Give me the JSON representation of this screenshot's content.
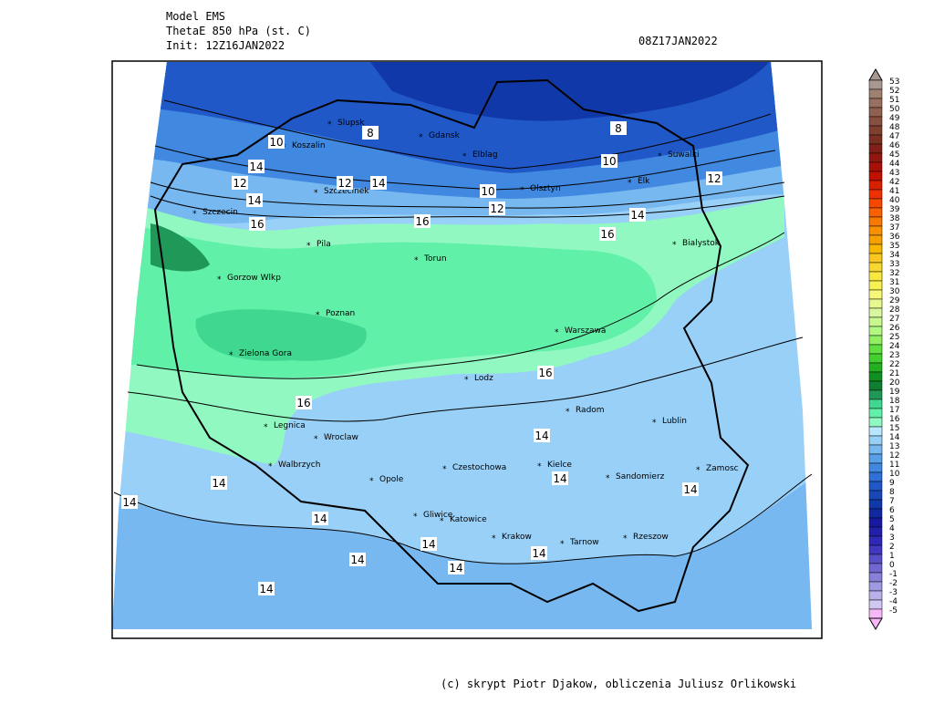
{
  "header": {
    "model": "Model EMS",
    "field": "ThetaE 850 hPa (st. C)",
    "init": "Init: 12Z16JAN2022",
    "valid": "08Z17JAN2022"
  },
  "footer": "(c) skrypt Piotr Djakow, obliczenia Juliusz Orlikowski",
  "cities": [
    "Slupsk",
    "Koszalin",
    "Gdansk",
    "Elblag",
    "Suwalki",
    "Szczecinek",
    "Olsztyn",
    "Elk",
    "Szczecin",
    "Pila",
    "Torun",
    "Bialystok",
    "Gorzow Wlkp",
    "Poznan",
    "Warszawa",
    "Zielona Gora",
    "Lodz",
    "Radom",
    "Lublin",
    "Legnica",
    "Wroclaw",
    "Walbrzych",
    "Opole",
    "Czestochowa",
    "Kielce",
    "Sandomierz",
    "Zamosc",
    "Gliwice",
    "Katowice",
    "Krakow",
    "Tarnow",
    "Rzeszow"
  ],
  "contour_labels": [
    8,
    8,
    10,
    10,
    10,
    12,
    12,
    12,
    12,
    14,
    14,
    14,
    14,
    16,
    16,
    16,
    16,
    16,
    14,
    14,
    14,
    14,
    14,
    14,
    14,
    14,
    14,
    14,
    14
  ],
  "colorbar": {
    "levels": [
      53,
      52,
      51,
      50,
      49,
      48,
      47,
      46,
      45,
      44,
      43,
      42,
      41,
      40,
      39,
      38,
      37,
      36,
      35,
      34,
      33,
      32,
      31,
      30,
      29,
      28,
      27,
      26,
      25,
      24,
      23,
      22,
      21,
      20,
      19,
      18,
      17,
      16,
      15,
      14,
      13,
      12,
      11,
      10,
      9,
      8,
      7,
      6,
      5,
      4,
      3,
      2,
      1,
      0,
      -1,
      -2,
      -3,
      -4,
      -5
    ],
    "colors": [
      "#a89890",
      "#a08070",
      "#987060",
      "#906050",
      "#885040",
      "#804030",
      "#783020",
      "#802018",
      "#901810",
      "#a81008",
      "#c01000",
      "#d82000",
      "#f03000",
      "#f84800",
      "#f86000",
      "#f87800",
      "#f89000",
      "#f8a000",
      "#f8b800",
      "#f8c820",
      "#f8d830",
      "#f8e840",
      "#f8f050",
      "#f8f878",
      "#e8f890",
      "#d8f8a0",
      "#c8f890",
      "#b0f880",
      "#90f060",
      "#60e040",
      "#40d030",
      "#20b020",
      "#109020",
      "#108030",
      "#209858",
      "#40d890",
      "#60f0a8",
      "#90f8c0",
      "#b8e8ff",
      "#98d0f8",
      "#78b8f0",
      "#58a0e8",
      "#4088e0",
      "#3070d8",
      "#2058c8",
      "#1848b8",
      "#1038a8",
      "#1028a0",
      "#1818a0",
      "#2020a8",
      "#3028b8",
      "#4038c0",
      "#5850c8",
      "#7068d0",
      "#8880d8",
      "#a098e0",
      "#b8b0e8",
      "#d0c8f0",
      "#f8b8f8"
    ]
  }
}
